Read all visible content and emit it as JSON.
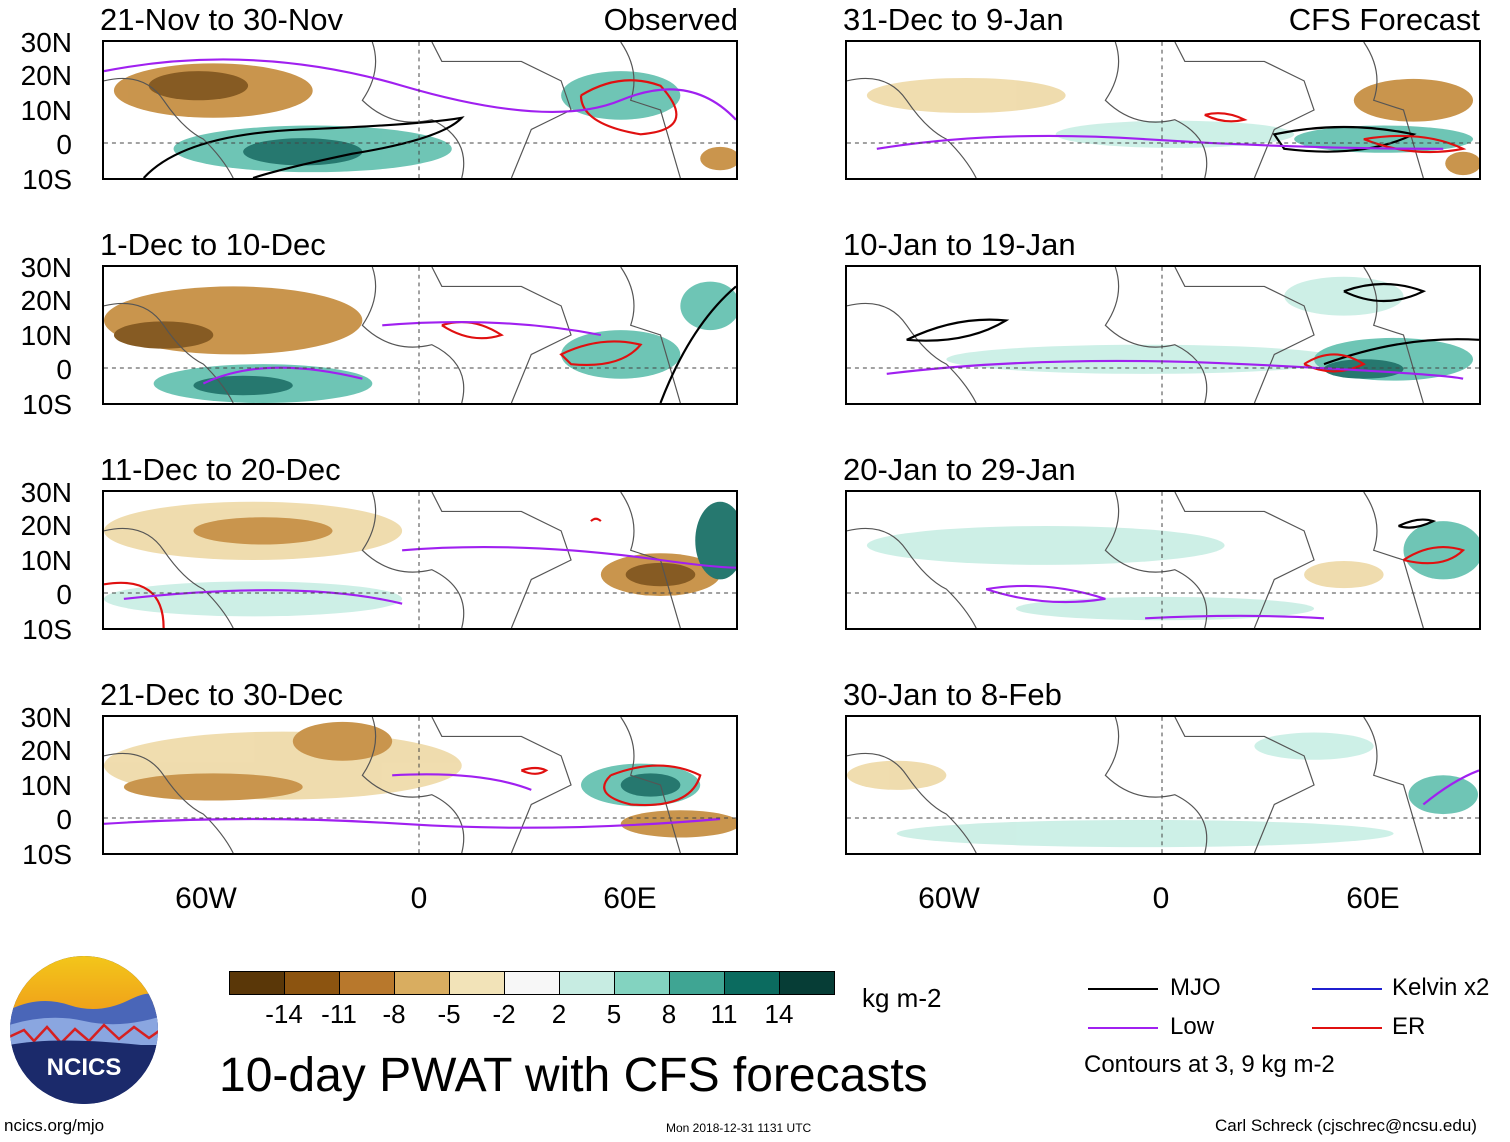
{
  "colors": {
    "mjo": "#000000",
    "low": "#a020f0",
    "kelvin": "#1f1fcf",
    "er": "#e01010",
    "brown_dark": "#7a4a0c",
    "brown": "#c48a3a",
    "tan": "#eed9a6",
    "teal_light": "#c8eee4",
    "teal": "#5fbfad",
    "teal_dark": "#0f6a60"
  },
  "observed_tag": "Observed",
  "forecast_tag": "CFS Forecast",
  "lat_labels": [
    "30N",
    "20N",
    "10N",
    "0",
    "10S"
  ],
  "lon_labels": [
    "60W",
    "0",
    "60E"
  ],
  "panels_left": [
    {
      "title": "21-Nov to 30-Nov"
    },
    {
      "title": "1-Dec to 10-Dec"
    },
    {
      "title": "11-Dec to 20-Dec"
    },
    {
      "title": "21-Dec to 30-Dec"
    }
  ],
  "panels_right": [
    {
      "title": "31-Dec to 9-Jan"
    },
    {
      "title": "10-Jan to 19-Jan"
    },
    {
      "title": "20-Jan to 29-Jan"
    },
    {
      "title": "30-Jan to 8-Feb"
    }
  ],
  "colorbar": {
    "colors": [
      "#5a3708",
      "#8c5410",
      "#b8782c",
      "#d9ad60",
      "#f2e3b8",
      "#f7f7f7",
      "#c7ece2",
      "#83d3c0",
      "#3fa593",
      "#0b6b5f",
      "#063d36"
    ],
    "ticks": [
      "-14",
      "-11",
      "-8",
      "-5",
      "-2",
      "2",
      "5",
      "8",
      "11",
      "14"
    ],
    "units": "kg m-2"
  },
  "legend": {
    "mjo": "MJO",
    "low": "Low",
    "kelvin": "Kelvin x2",
    "er": "ER",
    "note": "Contours at 3, 9 kg m-2"
  },
  "title": "10-day PWAT with CFS forecasts",
  "logo_text": "NCICS",
  "url": "ncics.org/mjo",
  "timestamp": "Mon 2018-12-31 1131 UTC",
  "credit": "Carl Schreck (cjschrec@ncsu.edu)"
}
